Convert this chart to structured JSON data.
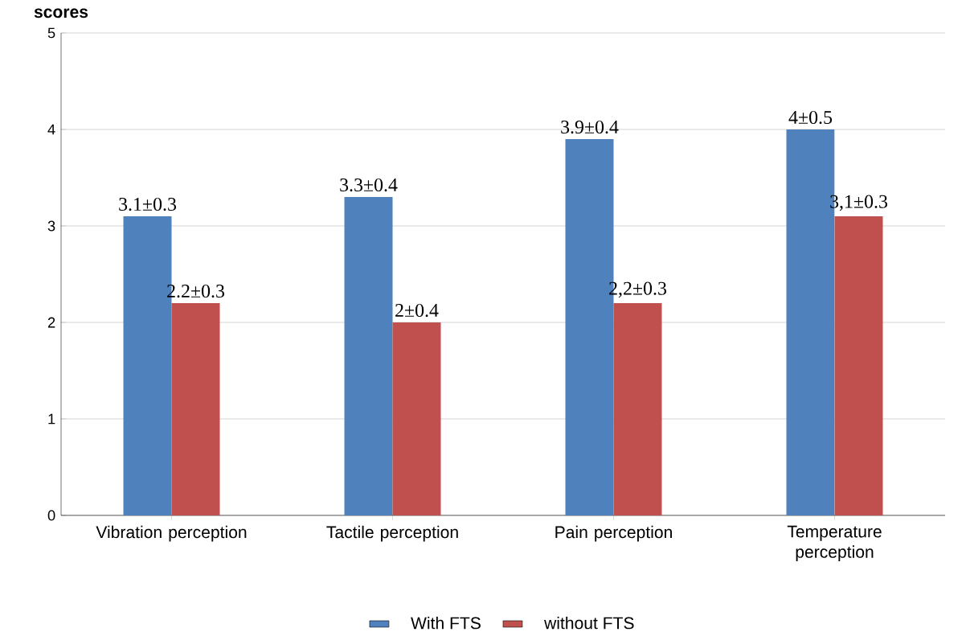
{
  "chart_data": {
    "type": "bar",
    "ylabel": "scores",
    "categories": [
      "Vibration perception",
      "Tactile perception",
      "Pain perception",
      "Temperature perception"
    ],
    "series": [
      {
        "name": "With FTS",
        "color": "#4f81bd",
        "values": [
          3.1,
          3.3,
          3.9,
          4
        ],
        "value_labels": [
          "3.1±0.3",
          "3.3±0.4",
          "3.9±0.4",
          "4±0.5"
        ]
      },
      {
        "name": "without FTS",
        "color": "#c0504d",
        "values": [
          2.2,
          2,
          2.2,
          3.1
        ],
        "value_labels": [
          "2.2±0.3",
          "2±0.4",
          "2,2±0.3",
          "3,1±0.3"
        ]
      }
    ],
    "ylim": [
      0,
      5
    ],
    "yticks": [
      0,
      1,
      2,
      3,
      4,
      5
    ],
    "grid": "y",
    "legend": "bottom"
  }
}
